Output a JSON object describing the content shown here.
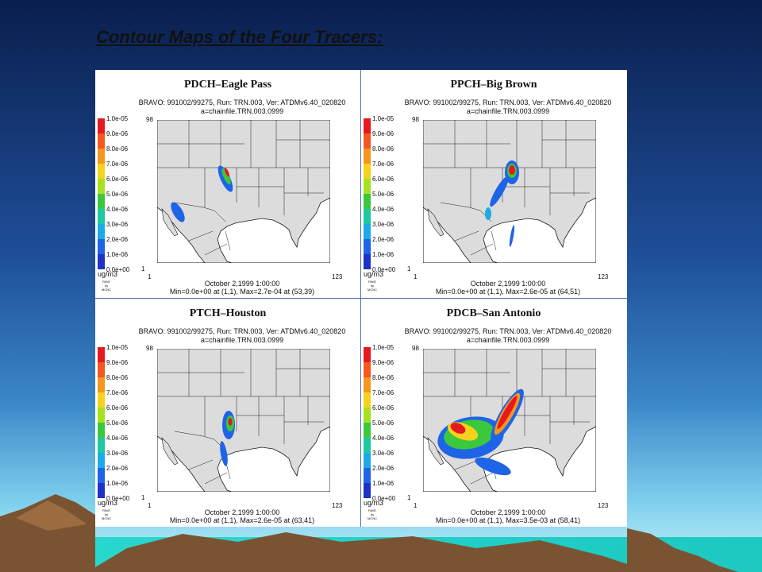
{
  "slide": {
    "title": "Contour Maps of the Four Tracers:"
  },
  "legend": {
    "levels": [
      "1.0e-05",
      "9.0e-06",
      "8.0e-06",
      "7.0e-06",
      "6.0e-06",
      "5.0e-06",
      "4.0e-06",
      "3.0e-06",
      "2.0e-06",
      "1.0e-06",
      "0.0e+00"
    ],
    "colors": [
      "#e6191e",
      "#f5571e",
      "#f5961e",
      "#f5d21e",
      "#a8e11e",
      "#3cc83c",
      "#1ec8a0",
      "#1eaae6",
      "#1e64e6",
      "#1e32c8"
    ],
    "unit": "ug/m3",
    "pave": [
      "PAVE",
      "by",
      "MCNC"
    ]
  },
  "axes": {
    "y_top": "98",
    "y_bottom": "1",
    "x_left": "1",
    "x_right": "123"
  },
  "colors": {
    "land": "#dcdcdc",
    "ocean": "#ffffff",
    "border": "#1a1a1a",
    "separator": "#4a6fa5"
  },
  "panels": [
    {
      "title": "PDCH–Eagle Pass",
      "run": "BRAVO: 991002/99275, Run: TRN.003, Ver: ATDMv6.40_020820",
      "file": "a=chainfile.TRN.003.0999",
      "date": "October 2,1999 1:00:00",
      "minmax": "Min=0.0e+00 at (1,1), Max=2.7e-04 at (53,39)"
    },
    {
      "title": "PPCH–Big Brown",
      "run": "BRAVO: 991002/99275, Run: TRN.003, Ver: ATDMv6.40_020820",
      "file": "a=chainfile.TRN.003.0999",
      "date": "October 2,1999 1:00:00",
      "minmax": "Min=0.0e+00 at (1,1), Max=2.6e-05 at (64,51)"
    },
    {
      "title": "PTCH–Houston",
      "run": "BRAVO: 991002/99275, Run: TRN.003, Ver: ATDMv6.40_020820",
      "file": "a=chainfile.TRN.003.0999",
      "date": "October 2,1999 1:00:00",
      "minmax": "Min=0.0e+00 at (1,1), Max=2.6e-05 at (63,41)"
    },
    {
      "title": "PDCB–San Antonio",
      "run": "BRAVO: 991002/99275, Run: TRN.003, Ver: ATDMv6.40_020820",
      "file": "a=chainfile.TRN.003.0999",
      "date": "October 2,1999 1:00:00",
      "minmax": "Min=0.0e+00 at (1,1), Max=3.5e-03 at (58,41)"
    }
  ]
}
